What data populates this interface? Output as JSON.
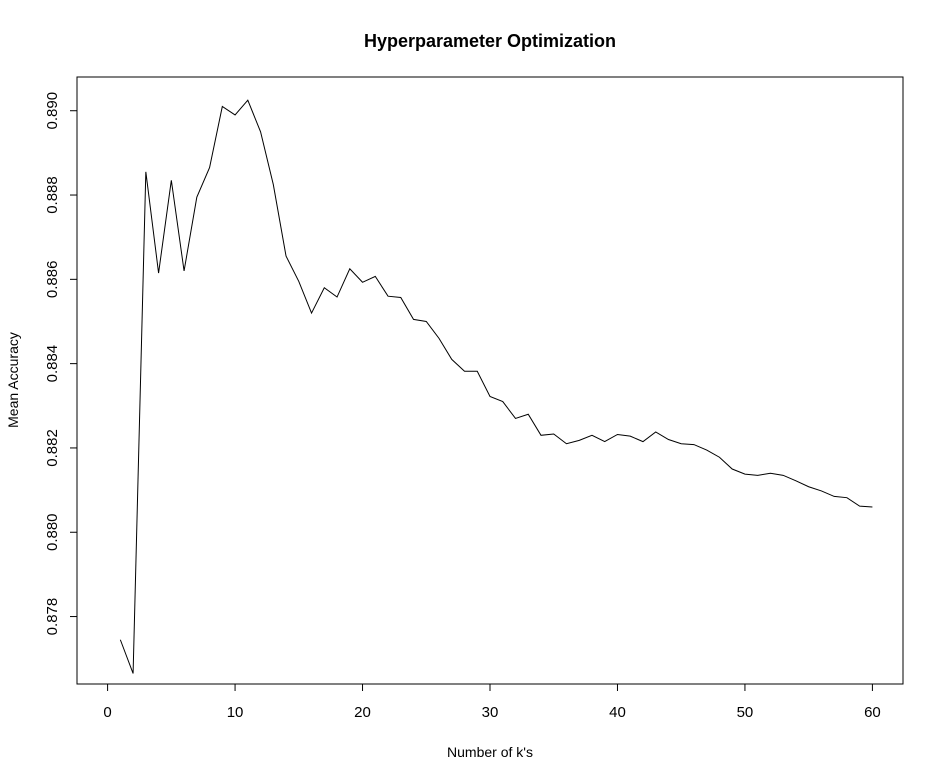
{
  "chart_data": {
    "type": "line",
    "title": "Hyperparameter Optimization",
    "xlabel": "Number of k's",
    "ylabel": "Mean Accuracy",
    "xlim": [
      -2.4,
      62.4
    ],
    "ylim": [
      0.8764,
      0.8908
    ],
    "x_ticks": [
      0,
      10,
      20,
      30,
      40,
      50,
      60
    ],
    "y_ticks": [
      0.878,
      0.88,
      0.882,
      0.884,
      0.886,
      0.888,
      0.89
    ],
    "x_tick_labels": [
      "0",
      "10",
      "20",
      "30",
      "40",
      "50",
      "60"
    ],
    "y_tick_labels": [
      "0.878",
      "0.880",
      "0.882",
      "0.884",
      "0.886",
      "0.888",
      "0.890"
    ],
    "grid": false,
    "legend": "none",
    "line_color": "#000000",
    "x": [
      1,
      2,
      3,
      4,
      5,
      6,
      7,
      8,
      9,
      10,
      11,
      12,
      13,
      14,
      15,
      16,
      17,
      18,
      19,
      20,
      21,
      22,
      23,
      24,
      25,
      26,
      27,
      28,
      29,
      30,
      31,
      32,
      33,
      34,
      35,
      36,
      37,
      38,
      39,
      40,
      41,
      42,
      43,
      44,
      45,
      46,
      47,
      48,
      49,
      50,
      51,
      52,
      53,
      54,
      55,
      56,
      57,
      58,
      59,
      60
    ],
    "y": [
      0.87745,
      0.87665,
      0.88855,
      0.88615,
      0.88835,
      0.8862,
      0.88795,
      0.88865,
      0.8901,
      0.8899,
      0.89025,
      0.8895,
      0.88825,
      0.88655,
      0.88595,
      0.8852,
      0.8858,
      0.88558,
      0.88625,
      0.88593,
      0.88607,
      0.8856,
      0.88557,
      0.88505,
      0.885,
      0.8846,
      0.8841,
      0.88382,
      0.88382,
      0.88322,
      0.8831,
      0.8827,
      0.8828,
      0.8823,
      0.88233,
      0.8821,
      0.88218,
      0.8823,
      0.88215,
      0.88232,
      0.88228,
      0.88215,
      0.88238,
      0.8822,
      0.8821,
      0.88208,
      0.88195,
      0.88178,
      0.8815,
      0.88138,
      0.88135,
      0.8814,
      0.88135,
      0.88122,
      0.88108,
      0.88098,
      0.88085,
      0.88082,
      0.88062,
      0.8806
    ]
  }
}
